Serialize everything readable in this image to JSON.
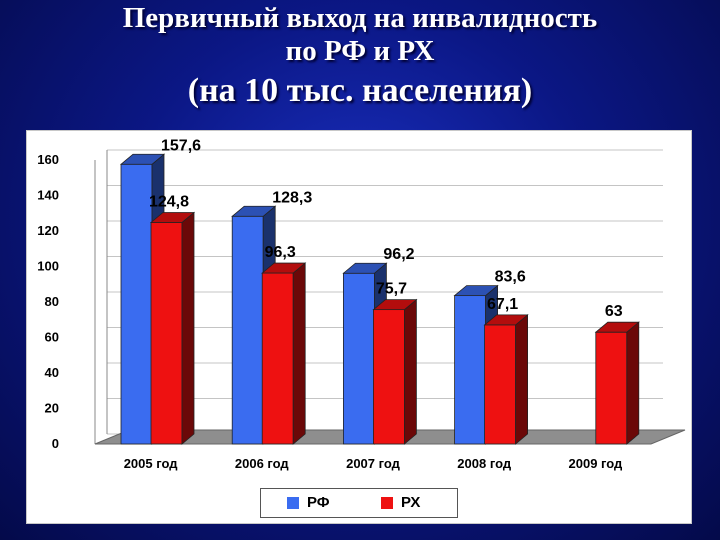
{
  "title": {
    "line1": "Первичный выход на инвалидность",
    "line2": "по РФ и РХ",
    "line3": "(на 10 тыс. населения)"
  },
  "colors": {
    "background": "#0b1785",
    "rf": "#3a6cf0",
    "rh": "#ee1111"
  },
  "chart_data": {
    "type": "bar",
    "categories": [
      "2005 год",
      "2006 год",
      "2007 год",
      "2008 год",
      "2009 год"
    ],
    "series": [
      {
        "name": "РФ",
        "values": [
          157.6,
          128.3,
          96.2,
          83.6,
          null
        ],
        "labels": [
          "157,6",
          "128,3",
          "96,2",
          "83,6",
          ""
        ]
      },
      {
        "name": "РХ",
        "values": [
          124.8,
          96.3,
          75.7,
          67.1,
          63
        ],
        "labels": [
          "124,8",
          "96,3",
          "75,7",
          "67,1",
          "63"
        ]
      }
    ],
    "yticks": [
      0,
      20,
      40,
      60,
      80,
      100,
      120,
      140,
      160
    ],
    "ylim": [
      0,
      160
    ],
    "grid": true,
    "legend_position": "bottom",
    "style": "3d-column"
  }
}
